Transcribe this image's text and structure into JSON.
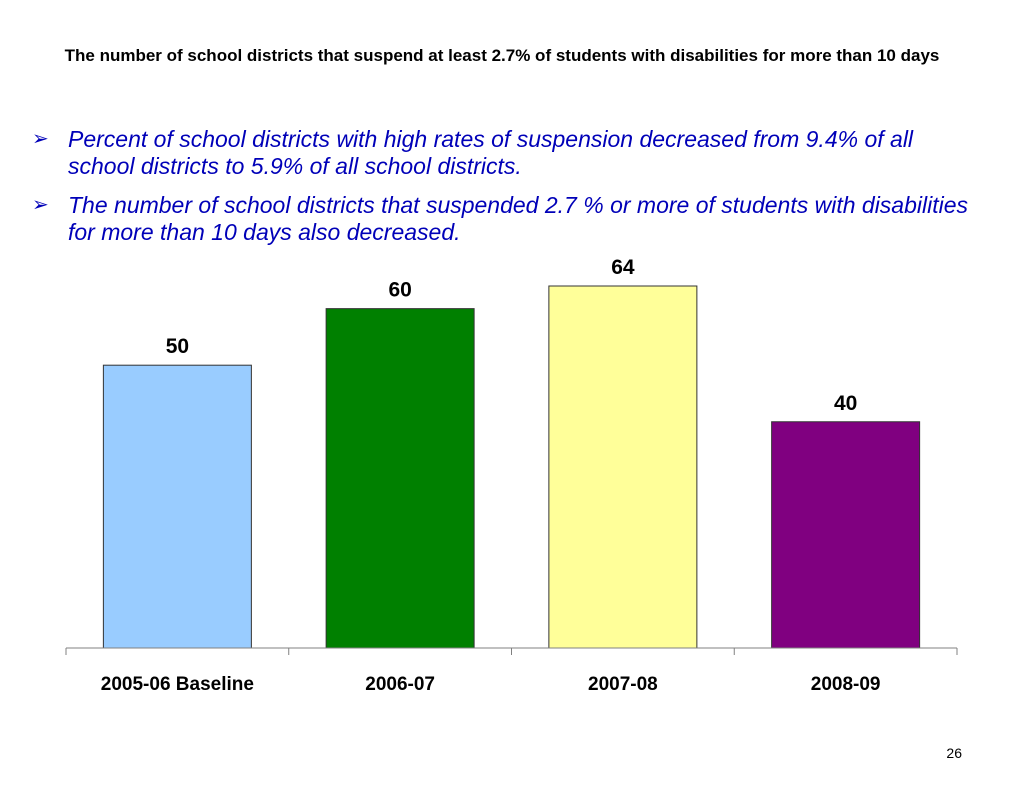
{
  "slide": {
    "title": "The number of school districts that suspend at least 2.7% of students with disabilities for more than 10 days",
    "bullets": [
      "Percent of school districts with high rates of suspension decreased from 9.4% of all school districts to 5.9% of all school districts.",
      "The number of school districts that suspended 2.7 % or more of students with disabilities for more than 10 days also decreased."
    ],
    "bullet_icon": "arrowhead-bullet-icon",
    "page_number": "26"
  },
  "chart_data": {
    "type": "bar",
    "title": "",
    "xlabel": "",
    "ylabel": "",
    "categories": [
      "2005-06 Baseline",
      "2006-07",
      "2007-08",
      "2008-09"
    ],
    "values": [
      50,
      60,
      64,
      40
    ],
    "data_labels": [
      "50",
      "60",
      "64",
      "40"
    ],
    "colors": [
      "#99ccff",
      "#008000",
      "#ffff99",
      "#800080"
    ],
    "ylim": [
      0,
      64
    ],
    "grid": false,
    "legend": "none"
  }
}
